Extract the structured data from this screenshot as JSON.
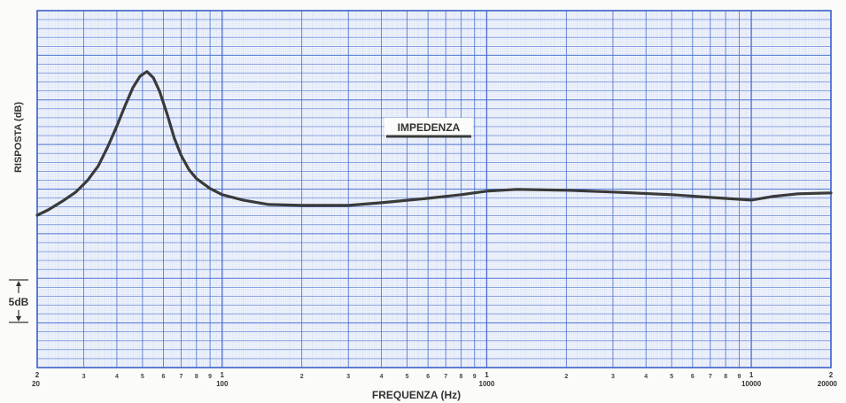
{
  "chart_data": {
    "type": "line",
    "title": "",
    "xlabel": "FREQUENZA (Hz)",
    "ylabel": "RISPOSTA (dB)",
    "x_scale": "log",
    "xlim": [
      20,
      20000
    ],
    "grid": true,
    "legend": "none",
    "x_major_ticks": [
      {
        "value": 20,
        "label": "2"
      },
      {
        "value": 100,
        "label": "1"
      },
      {
        "value": 1000,
        "label": "1"
      },
      {
        "value": 10000,
        "label": "1"
      },
      {
        "value": 20000,
        "label": "2"
      }
    ],
    "x_major_sublabels": [
      {
        "value": 20,
        "label": "20"
      },
      {
        "value": 100,
        "label": "100"
      },
      {
        "value": 1000,
        "label": "1000"
      },
      {
        "value": 10000,
        "label": "10000"
      },
      {
        "value": 20000,
        "label": "20000"
      }
    ],
    "x_minor_labels": [
      "2",
      "3",
      "4",
      "5",
      "6",
      "7",
      "8",
      "9"
    ],
    "scale_marker_label": "5dB",
    "scale_marker_db": 5,
    "series": [
      {
        "name": "IMPEDENZA",
        "x": [
          20,
          22,
          25,
          28,
          31,
          34,
          37,
          40,
          43,
          46,
          49,
          52,
          55,
          58,
          62,
          66,
          70,
          75,
          80,
          90,
          100,
          120,
          150,
          200,
          300,
          400,
          600,
          800,
          1000,
          1300,
          2000,
          3000,
          5000,
          7000,
          10000,
          12000,
          15000,
          20000
        ],
        "y": [
          -0.3,
          0.3,
          1.3,
          2.3,
          3.6,
          5.2,
          7.4,
          9.7,
          12.0,
          14.0,
          15.3,
          15.8,
          15.1,
          13.6,
          11.0,
          8.3,
          6.4,
          4.8,
          3.8,
          2.7,
          2.0,
          1.4,
          0.9,
          0.8,
          0.8,
          1.1,
          1.6,
          2.0,
          2.4,
          2.6,
          2.5,
          2.3,
          2.0,
          1.7,
          1.4,
          1.8,
          2.1,
          2.2
        ]
      }
    ]
  }
}
